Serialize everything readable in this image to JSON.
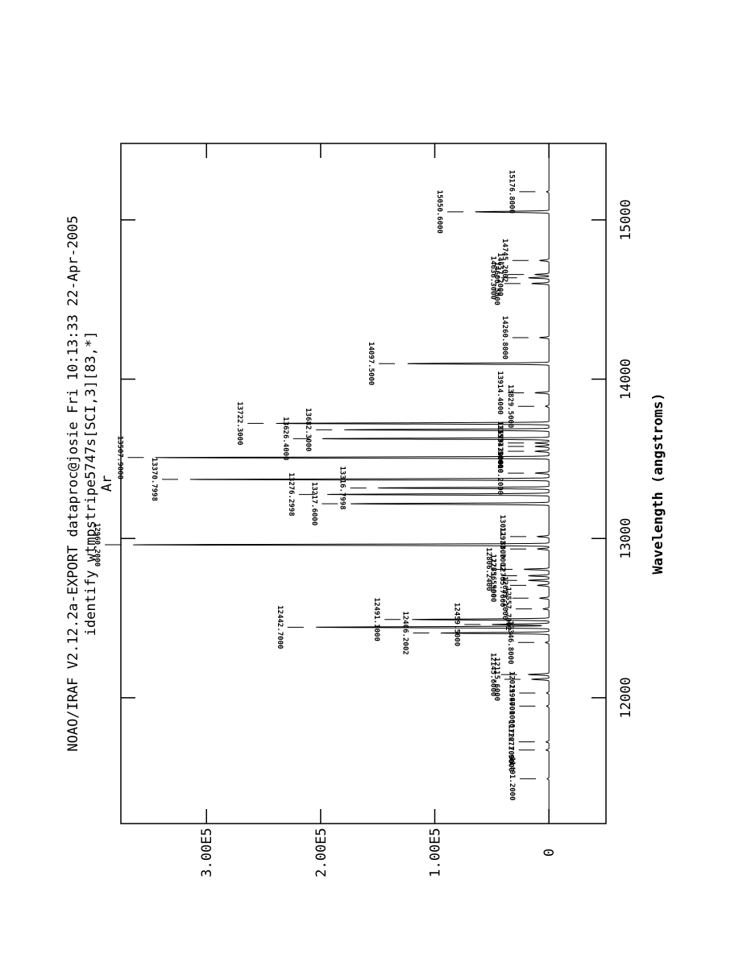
{
  "header": {
    "line1": "NOAO/IRAF V2.12.2a-EXPORT dataproc@josie Fri 10:13:33 22-Apr-2005",
    "line2": "identify wtmpstripe5747s[SCI,3][83,*]",
    "line3": "Ar"
  },
  "chart_data": {
    "type": "line",
    "title": "identify wtmpstripe5747s[SCI,3][83,*]",
    "subtitle": "Ar",
    "xlabel": "Wavelength (angstroms)",
    "ylabel": "",
    "xlim": [
      11210,
      15480
    ],
    "ylim": [
      -50000,
      375000
    ],
    "x_ticks": [
      {
        "value": 12000,
        "label": "12000"
      },
      {
        "value": 13000,
        "label": "13000"
      },
      {
        "value": 14000,
        "label": "14000"
      },
      {
        "value": 15000,
        "label": "15000"
      }
    ],
    "y_ticks": [
      {
        "value": 0,
        "label": "0"
      },
      {
        "value": 100000,
        "label": "1.00E5"
      },
      {
        "value": 200000,
        "label": "2.00E5"
      },
      {
        "value": 300000,
        "label": "3.00E5"
      }
    ],
    "grid": false,
    "lines": [
      {
        "wavelength": 11491.2,
        "label": "11491.2000",
        "peak": 1500
      },
      {
        "wavelength": 11671.9,
        "label": "11671.9000",
        "peak": 2500
      },
      {
        "wavelength": 11722.7,
        "label": "11722.7000",
        "peak": 2500
      },
      {
        "wavelength": 11947.1,
        "label": "11947.1000",
        "peak": 2000
      },
      {
        "wavelength": 12029.9,
        "label": "12029.9000",
        "peak": 2000
      },
      {
        "wavelength": 12115.6,
        "label": "12115.6000",
        "peak": 15000
      },
      {
        "wavelength": 12145.6,
        "label": "12145.6000",
        "peak": 18000
      },
      {
        "wavelength": 12346.8,
        "label": "12346.8000",
        "peak": 3000
      },
      {
        "wavelength": 12406.2,
        "label": "12406.2002",
        "peak": 95000
      },
      {
        "wavelength": 12442.7,
        "label": "12442.7000",
        "peak": 205000
      },
      {
        "wavelength": 12459.5,
        "label": "12459.5000",
        "peak": 50000
      },
      {
        "wavelength": 12491.1,
        "label": "12491.1000",
        "peak": 120000
      },
      {
        "wavelength": 12557.7,
        "label": "12557.7002",
        "peak": 5000
      },
      {
        "wavelength": 12625.1,
        "label": "12625.1000",
        "peak": 8000
      },
      {
        "wavelength": 12705.7,
        "label": "12705.7600",
        "peak": 10000
      },
      {
        "wavelength": 12736.9,
        "label": "12736.9000",
        "peak": 18000
      },
      {
        "wavelength": 12765.5,
        "label": "12765.5500",
        "peak": 18000
      },
      {
        "wavelength": 12806.2,
        "label": "12806.2400",
        "peak": 22000
      },
      {
        "wavelength": 12933.7,
        "label": "12933.7002",
        "peak": 10000
      },
      {
        "wavelength": 12960.2,
        "label": "12960.2000",
        "peak": 365000
      },
      {
        "wavelength": 13011.8,
        "label": "13011.8000",
        "peak": 10000
      },
      {
        "wavelength": 13217.6,
        "label": "13217.6000",
        "peak": 175000
      },
      {
        "wavelength": 13276.3,
        "label": "13276.2998",
        "peak": 195000
      },
      {
        "wavelength": 13316.8,
        "label": "13316.7998",
        "peak": 150000
      },
      {
        "wavelength": 13370.8,
        "label": "13370.7998",
        "peak": 315000
      },
      {
        "wavelength": 13410.2,
        "label": "13410.2000",
        "peak": 12000
      },
      {
        "wavelength": 13507.9,
        "label": "13507.9000",
        "peak": 345000
      },
      {
        "wavelength": 13547.3,
        "label": "13547.3000",
        "peak": 12000
      },
      {
        "wavelength": 13577.5,
        "label": "13577.5000",
        "peak": 12000
      },
      {
        "wavelength": 13599.3,
        "label": "13599.3000",
        "peak": 12000
      },
      {
        "wavelength": 13626.4,
        "label": "13626.4000",
        "peak": 200000
      },
      {
        "wavelength": 13682.3,
        "label": "13682.3000",
        "peak": 180000
      },
      {
        "wavelength": 13722.3,
        "label": "13722.3000",
        "peak": 240000
      },
      {
        "wavelength": 13829.5,
        "label": "13829.5000",
        "peak": 3000
      },
      {
        "wavelength": 13914.4,
        "label": "13914.4000",
        "peak": 12000
      },
      {
        "wavelength": 14097.5,
        "label": "14097.5000",
        "peak": 125000
      },
      {
        "wavelength": 14260.8,
        "label": "14260.8000",
        "peak": 8000
      },
      {
        "wavelength": 14600.5,
        "label": "14600.5000",
        "peak": 15000
      },
      {
        "wavelength": 14636.3,
        "label": "14636.3000",
        "peak": 18000
      },
      {
        "wavelength": 14657.2,
        "label": "14657.2000",
        "peak": 12000
      },
      {
        "wavelength": 14745.2,
        "label": "14745.2002",
        "peak": 8000
      },
      {
        "wavelength": 15050.6,
        "label": "15050.6000",
        "peak": 65000
      },
      {
        "wavelength": 15176.8,
        "label": "15176.8000",
        "peak": 2000
      }
    ]
  }
}
